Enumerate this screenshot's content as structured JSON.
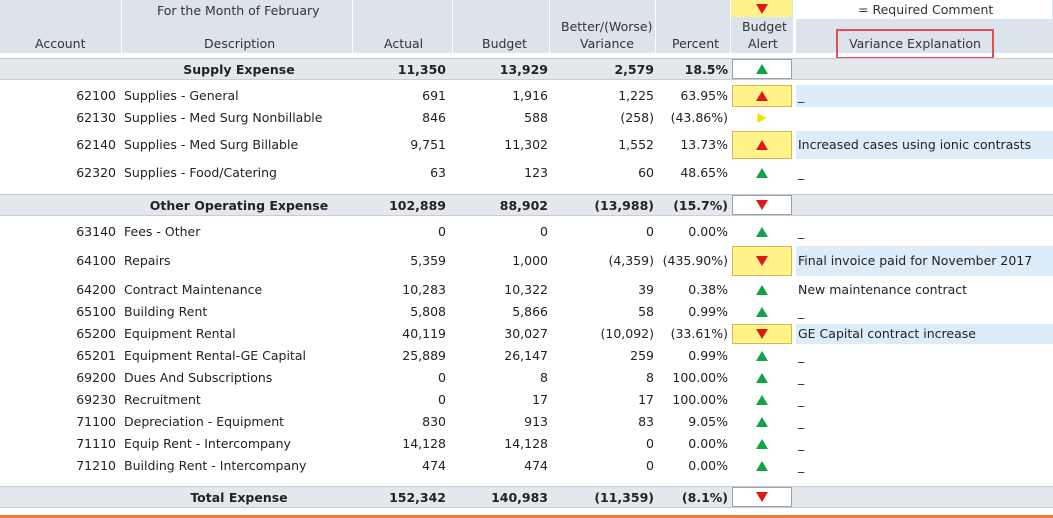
{
  "header": {
    "account": "Account",
    "month": "For the Month of February",
    "description": "Description",
    "actual": "Actual",
    "budget": "Budget",
    "variance_line1": "Better/(Worse)",
    "variance_line2": "Variance",
    "percent": "Percent",
    "alert_line1": "Budget",
    "alert_line2": "Alert",
    "required_comment": "= Required Comment",
    "variance_explanation": "Variance Explanation"
  },
  "rows": [
    {
      "kind": "section",
      "desc": "Supply Expense",
      "actual": "11,350",
      "budget": "13,929",
      "variance": "2,579",
      "percent": "18.5%",
      "alert": "up-green"
    },
    {
      "kind": "item",
      "acct": "62100",
      "desc": "Supplies - General",
      "actual": "691",
      "budget": "1,916",
      "variance": "1,225",
      "percent": "63.95%",
      "alert": "up-red",
      "hl": true,
      "comment": "_",
      "blue": true
    },
    {
      "kind": "item",
      "acct": "62130",
      "desc": "Supplies - Med Surg Nonbillable",
      "actual": "846",
      "budget": "588",
      "variance": "(258)",
      "percent": "(43.86%)",
      "alert": "right-yellow",
      "comment": ""
    },
    {
      "kind": "item",
      "acct": "62140",
      "desc": "Supplies - Med Surg Billable",
      "actual": "9,751",
      "budget": "11,302",
      "variance": "1,552",
      "percent": "13.73%",
      "alert": "up-red",
      "hl": true,
      "comment": "Increased cases using ionic contrasts",
      "blue": true
    },
    {
      "kind": "item",
      "acct": "62320",
      "desc": "Supplies - Food/Catering",
      "actual": "63",
      "budget": "123",
      "variance": "60",
      "percent": "48.65%",
      "alert": "up-green",
      "comment": "_"
    },
    {
      "kind": "section",
      "desc": "Other Operating Expense",
      "actual": "102,889",
      "budget": "88,902",
      "variance": "(13,988)",
      "percent": "(15.7%)",
      "alert": "down-red"
    },
    {
      "kind": "item",
      "acct": "63140",
      "desc": "Fees - Other",
      "actual": "0",
      "budget": "0",
      "variance": "0",
      "percent": "0.00%",
      "alert": "up-green",
      "comment": "_"
    },
    {
      "kind": "item",
      "acct": "64100",
      "desc": "Repairs",
      "actual": "5,359",
      "budget": "1,000",
      "variance": "(4,359)",
      "percent": "(435.90%)",
      "alert": "down-red",
      "hl": true,
      "comment": "Final invoice paid for November 2017",
      "blue": true
    },
    {
      "kind": "item",
      "acct": "64200",
      "desc": "Contract Maintenance",
      "actual": "10,283",
      "budget": "10,322",
      "variance": "39",
      "percent": "0.38%",
      "alert": "up-green",
      "comment": "New maintenance contract"
    },
    {
      "kind": "item",
      "acct": "65100",
      "desc": "Building Rent",
      "actual": "5,808",
      "budget": "5,866",
      "variance": "58",
      "percent": "0.99%",
      "alert": "up-green",
      "comment": "_"
    },
    {
      "kind": "item",
      "acct": "65200",
      "desc": "Equipment Rental",
      "actual": "40,119",
      "budget": "30,027",
      "variance": "(10,092)",
      "percent": "(33.61%)",
      "alert": "down-red",
      "hl": true,
      "comment": "GE Capital contract increase",
      "blue": true
    },
    {
      "kind": "item",
      "acct": "65201",
      "desc": "Equipment Rental-GE Capital",
      "actual": "25,889",
      "budget": "26,147",
      "variance": "259",
      "percent": "0.99%",
      "alert": "up-green",
      "comment": "_"
    },
    {
      "kind": "item",
      "acct": "69200",
      "desc": "Dues And Subscriptions",
      "actual": "0",
      "budget": "8",
      "variance": "8",
      "percent": "100.00%",
      "alert": "up-green",
      "comment": "_"
    },
    {
      "kind": "item",
      "acct": "69230",
      "desc": "Recruitment",
      "actual": "0",
      "budget": "17",
      "variance": "17",
      "percent": "100.00%",
      "alert": "up-green",
      "comment": "_"
    },
    {
      "kind": "item",
      "acct": "71100",
      "desc": "Depreciation - Equipment",
      "actual": "830",
      "budget": "913",
      "variance": "83",
      "percent": "9.05%",
      "alert": "up-green",
      "comment": "_"
    },
    {
      "kind": "item",
      "acct": "71110",
      "desc": "Equip Rent - Intercompany",
      "actual": "14,128",
      "budget": "14,128",
      "variance": "0",
      "percent": "0.00%",
      "alert": "up-green",
      "comment": "_"
    },
    {
      "kind": "item",
      "acct": "71210",
      "desc": "Building Rent - Intercompany",
      "actual": "474",
      "budget": "474",
      "variance": "0",
      "percent": "0.00%",
      "alert": "up-green",
      "comment": "_"
    },
    {
      "kind": "section",
      "desc": "Total Expense",
      "actual": "152,342",
      "budget": "140,983",
      "variance": "(11,359)",
      "percent": "(8.1%)",
      "alert": "down-red"
    }
  ],
  "colors": {
    "header_bg": "#dde3ea",
    "highlight": "#fff38a",
    "comment_blue": "#dcecf8",
    "red": "#e01818",
    "green": "#0fa34a",
    "accent_line": "#f07a3a"
  }
}
